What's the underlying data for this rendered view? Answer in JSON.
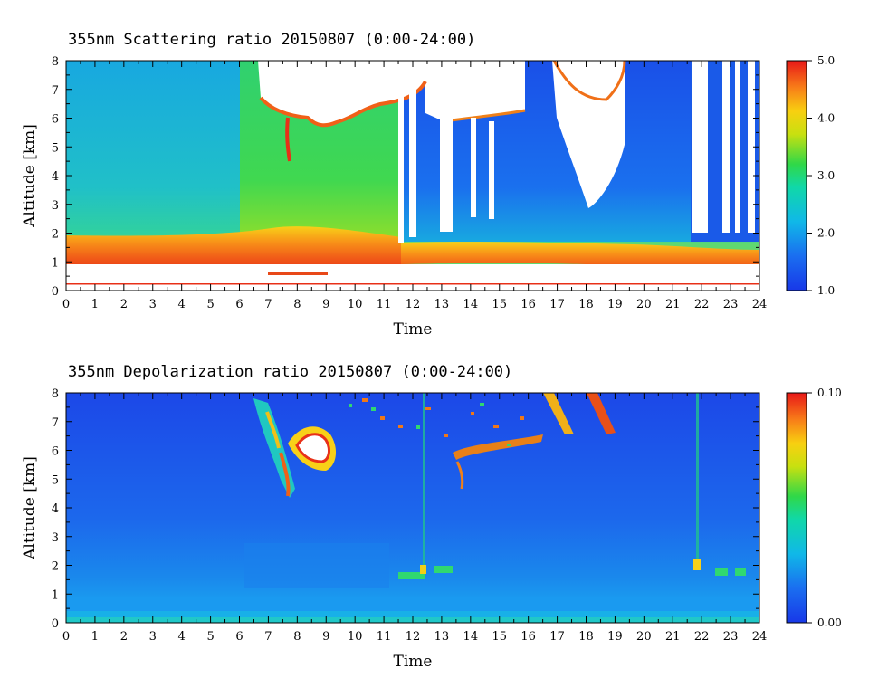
{
  "chart_data": [
    {
      "type": "heatmap",
      "title": "355nm Scattering ratio  20150807 (0:00-24:00)",
      "xlabel": "Time",
      "ylabel": "Altitude [km]",
      "x_ticks": [
        "0",
        "1",
        "2",
        "3",
        "4",
        "5",
        "6",
        "7",
        "8",
        "9",
        "10",
        "11",
        "12",
        "13",
        "14",
        "15",
        "16",
        "17",
        "18",
        "19",
        "20",
        "21",
        "22",
        "23",
        "24"
      ],
      "y_ticks": [
        "0",
        "1",
        "2",
        "3",
        "4",
        "5",
        "6",
        "7",
        "8"
      ],
      "xlim": [
        0,
        24
      ],
      "ylim": [
        0,
        8
      ],
      "colorbar": {
        "min": 1.0,
        "max": 5.0,
        "ticks": [
          "1.0",
          "2.0",
          "3.0",
          "4.0",
          "5.0"
        ]
      },
      "colors": {
        "low": "#1f3fe6",
        "mid": "#10d070",
        "high": "#e8201a",
        "nodata": "#ffffff"
      }
    },
    {
      "type": "heatmap",
      "title": "355nm Depolarization ratio  20150807 (0:00-24:00)",
      "xlabel": "Time",
      "ylabel": "Altitude [km]",
      "x_ticks": [
        "0",
        "1",
        "2",
        "3",
        "4",
        "5",
        "6",
        "7",
        "8",
        "9",
        "10",
        "11",
        "12",
        "13",
        "14",
        "15",
        "16",
        "17",
        "18",
        "19",
        "20",
        "21",
        "22",
        "23",
        "24"
      ],
      "y_ticks": [
        "0",
        "1",
        "2",
        "3",
        "4",
        "5",
        "6",
        "7",
        "8"
      ],
      "xlim": [
        0,
        24
      ],
      "ylim": [
        0,
        8
      ],
      "colorbar": {
        "min": 0.0,
        "max": 0.1,
        "ticks": [
          "0.00",
          "0.10"
        ]
      },
      "colors": {
        "low": "#1f3fe6",
        "mid": "#10d070",
        "high": "#e8201a",
        "nodata": "#ffffff"
      }
    }
  ]
}
